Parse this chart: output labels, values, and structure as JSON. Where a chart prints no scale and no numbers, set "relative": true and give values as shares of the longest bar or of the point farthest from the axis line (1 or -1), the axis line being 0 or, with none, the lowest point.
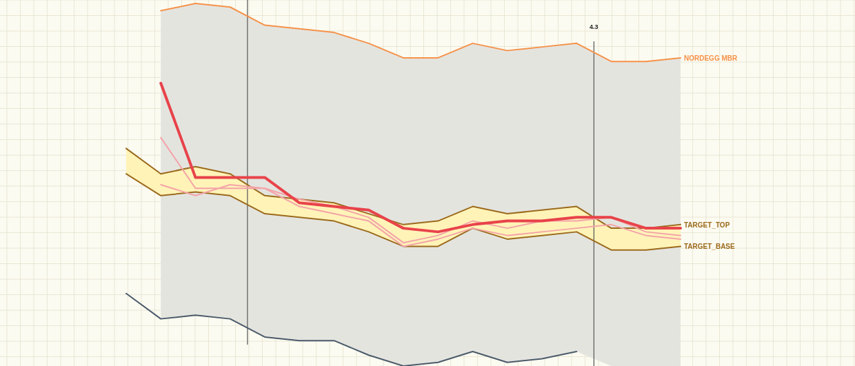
{
  "chart_data": {
    "type": "line",
    "relative": true,
    "grid": true,
    "categories": [
      null,
      null,
      null,
      null,
      null,
      null,
      null,
      null,
      null,
      null,
      null,
      null,
      null,
      null,
      null,
      null,
      null
    ],
    "annotations": [
      "4.3"
    ],
    "series": [
      {
        "name": "NORDEGG MBR",
        "color": "#f5924a",
        "values": [
          null,
          0.98,
          1.0,
          0.99,
          0.94,
          0.93,
          0.92,
          0.89,
          0.85,
          0.85,
          0.89,
          0.87,
          0.88,
          0.89,
          0.84,
          0.84,
          0.85
        ],
        "lower": [
          null,
          0.13,
          0.14,
          0.13,
          0.08,
          0.07,
          0.07,
          0.03,
          0.0,
          0.01,
          0.04,
          0.01,
          0.02,
          0.04,
          0.0,
          0.0,
          0.0
        ],
        "upper": [
          null,
          0.98,
          1.0,
          0.99,
          0.94,
          0.93,
          0.92,
          0.89,
          0.85,
          0.85,
          0.89,
          0.87,
          0.88,
          0.89,
          0.84,
          0.84,
          0.85
        ]
      },
      {
        "color": "#4a5a6a",
        "values": [
          0.2,
          0.13,
          0.14,
          0.13,
          0.08,
          0.07,
          0.07,
          0.03,
          0.0,
          0.01,
          0.04,
          0.01,
          0.02,
          0.04,
          null,
          null,
          null
        ]
      },
      {
        "name": "TARGET_TOP",
        "color": "#9b6a1c",
        "values": [
          0.6,
          0.53,
          0.55,
          0.53,
          0.47,
          0.46,
          0.45,
          0.42,
          0.39,
          0.4,
          0.44,
          0.42,
          0.43,
          0.44,
          0.38,
          0.38,
          0.39
        ],
        "lower": [
          0.53,
          0.47,
          0.48,
          0.47,
          0.42,
          0.41,
          0.4,
          0.37,
          0.33,
          0.33,
          0.38,
          0.35,
          0.36,
          0.37,
          0.32,
          0.32,
          0.33
        ],
        "upper": [
          0.6,
          0.53,
          0.55,
          0.53,
          0.47,
          0.46,
          0.45,
          0.42,
          0.39,
          0.4,
          0.44,
          0.42,
          0.43,
          0.44,
          0.38,
          0.38,
          0.39
        ]
      },
      {
        "name": "TARGET_BASE",
        "color": "#9b6a1c",
        "values": [
          0.53,
          0.47,
          0.48,
          0.47,
          0.42,
          0.41,
          0.4,
          0.37,
          0.33,
          0.33,
          0.38,
          0.35,
          0.36,
          0.37,
          0.32,
          0.32,
          0.33
        ]
      },
      {
        "color": "#f4a3a8",
        "values": [
          null,
          0.63,
          0.49,
          0.49,
          0.49,
          0.46,
          0.44,
          0.41,
          0.34,
          0.36,
          0.4,
          0.38,
          0.4,
          0.4,
          0.41,
          0.37,
          0.36
        ]
      },
      {
        "color": "#f4a3a8",
        "values": [
          null,
          0.5,
          0.47,
          0.5,
          0.49,
          0.44,
          0.42,
          0.4,
          0.33,
          0.35,
          0.38,
          0.36,
          0.37,
          0.38,
          0.39,
          0.36,
          0.35
        ]
      },
      {
        "color": "#e8434a",
        "values": [
          null,
          0.78,
          0.52,
          0.52,
          0.52,
          0.45,
          0.44,
          0.43,
          0.38,
          0.37,
          0.39,
          0.4,
          0.4,
          0.41,
          0.41,
          0.38,
          0.38
        ]
      }
    ]
  }
}
